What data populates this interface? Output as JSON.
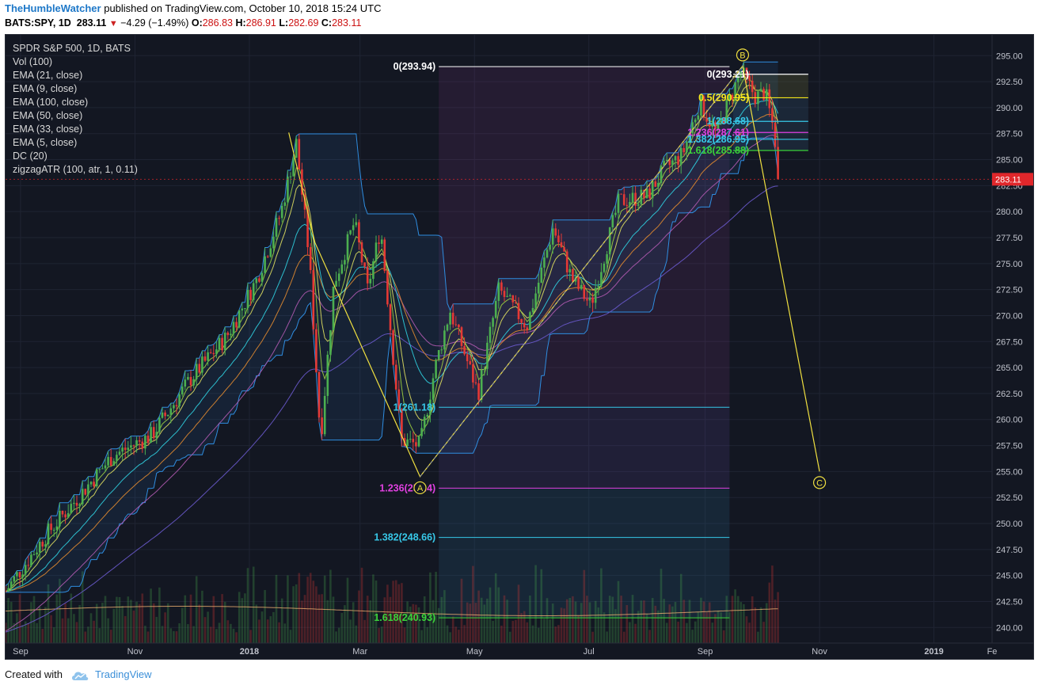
{
  "header": {
    "author": "TheHumbleWatcher",
    "published": "published on TradingView.com, October 10, 2018 15:24 UTC",
    "symbol": "BATS:SPY, 1D",
    "last": "283.11",
    "change": "−4.29 (−1.49%)",
    "open_label": "O:",
    "open": "286.83",
    "high_label": "H:",
    "high": "286.91",
    "low_label": "L:",
    "low": "282.69",
    "close_label": "C:",
    "close": "283.11"
  },
  "legend": [
    "SPDR S&P 500, 1D, BATS",
    "Vol (100)",
    "EMA (21, close)",
    "EMA (9, close)",
    "EMA (100, close)",
    "EMA (50, close)",
    "EMA (33, close)",
    "EMA (5, close)",
    "DC (20)",
    "zigzagATR (100, atr, 1, 0.11)"
  ],
  "footer": {
    "created_with": "Created with",
    "brand": "TradingView"
  },
  "colors": {
    "background": "#131722",
    "up": "#4caf50",
    "down": "#e53935",
    "price_label": "#e0272b",
    "fib_white": "#ffffff",
    "fib_yellow": "#f5e71a",
    "fib_cyan": "#37c8e8",
    "fib_magenta": "#e040e0",
    "fib_green": "#3ad23a",
    "zigzag": "#f0e040",
    "donchian": "#2f8de0"
  },
  "chart_data": {
    "type": "candlestick",
    "title": "SPDR S&P 500, 1D, BATS",
    "x_ticks": [
      "Sep",
      "Nov",
      "2018",
      "Mar",
      "May",
      "Jul",
      "Sep",
      "Nov",
      "2019",
      "Fe"
    ],
    "y_ticks": [
      "295.00",
      "292.50",
      "290.00",
      "287.50",
      "285.00",
      "282.50",
      "280.00",
      "277.50",
      "275.00",
      "272.50",
      "270.00",
      "267.50",
      "265.00",
      "262.50",
      "260.00",
      "257.50",
      "255.00",
      "252.50",
      "250.00",
      "247.50",
      "245.00",
      "242.50",
      "240.00"
    ],
    "ylim": [
      238.5,
      297.0
    ],
    "last_price": 283.11,
    "price_path": [
      {
        "date": "2017-08-24",
        "close": 243.5
      },
      {
        "date": "2017-09-15",
        "close": 249.0
      },
      {
        "date": "2017-10-02",
        "close": 252.6
      },
      {
        "date": "2017-10-20",
        "close": 256.5
      },
      {
        "date": "2017-11-10",
        "close": 258.5
      },
      {
        "date": "2017-12-01",
        "close": 264.0
      },
      {
        "date": "2017-12-20",
        "close": 268.0
      },
      {
        "date": "2018-01-05",
        "close": 273.5
      },
      {
        "date": "2018-01-18",
        "close": 280.0
      },
      {
        "date": "2018-01-26",
        "close": 286.6
      },
      {
        "date": "2018-02-02",
        "close": 275.5
      },
      {
        "date": "2018-02-08",
        "close": 258.0
      },
      {
        "date": "2018-02-15",
        "close": 273.0
      },
      {
        "date": "2018-02-26",
        "close": 279.0
      },
      {
        "date": "2018-03-05",
        "close": 272.5
      },
      {
        "date": "2018-03-12",
        "close": 278.5
      },
      {
        "date": "2018-03-23",
        "close": 258.0
      },
      {
        "date": "2018-04-02",
        "close": 257.5
      },
      {
        "date": "2018-04-10",
        "close": 265.0
      },
      {
        "date": "2018-04-18",
        "close": 270.5
      },
      {
        "date": "2018-05-03",
        "close": 262.5
      },
      {
        "date": "2018-05-14",
        "close": 272.5
      },
      {
        "date": "2018-05-29",
        "close": 269.0
      },
      {
        "date": "2018-06-12",
        "close": 278.5
      },
      {
        "date": "2018-06-22",
        "close": 273.5
      },
      {
        "date": "2018-07-02",
        "close": 271.0
      },
      {
        "date": "2018-07-17",
        "close": 281.0
      },
      {
        "date": "2018-08-01",
        "close": 281.5
      },
      {
        "date": "2018-08-10",
        "close": 284.0
      },
      {
        "date": "2018-08-20",
        "close": 285.5
      },
      {
        "date": "2018-08-29",
        "close": 290.5
      },
      {
        "date": "2018-09-07",
        "close": 287.5
      },
      {
        "date": "2018-09-20",
        "close": 293.5
      },
      {
        "date": "2018-09-28",
        "close": 291.0
      },
      {
        "date": "2018-10-03",
        "close": 291.5
      },
      {
        "date": "2018-10-08",
        "close": 287.5
      },
      {
        "date": "2018-10-10",
        "close": 283.11
      }
    ],
    "zigzag": [
      {
        "date": "2018-01-22",
        "value": 287.6,
        "label": ""
      },
      {
        "date": "2018-02-05",
        "value": 277.0,
        "label": ""
      },
      {
        "date": "2018-04-02",
        "value": 254.5,
        "label": "A"
      },
      {
        "date": "2018-09-21",
        "value": 294.0,
        "label": "B"
      },
      {
        "date": "2018-11-01",
        "value": 255.0,
        "label": "C"
      }
    ],
    "fib_left": [
      {
        "label": "0(293.94)",
        "value": 293.94,
        "color": "#ffffff"
      },
      {
        "label": "1(261.18)",
        "value": 261.18,
        "color": "#37c8e8"
      },
      {
        "label": "1.236(253.4)",
        "value": 253.4,
        "color": "#e040e0"
      },
      {
        "label": "1.382(248.66)",
        "value": 248.66,
        "color": "#37c8e8"
      },
      {
        "label": "1.618(240.93)",
        "value": 240.93,
        "color": "#3ad23a"
      }
    ],
    "fib_right": [
      {
        "label": "0(293.21)",
        "value": 293.21,
        "color": "#ffffff"
      },
      {
        "label": "0.5(290.95)",
        "value": 290.95,
        "color": "#f5e71a"
      },
      {
        "label": "1(288.68)",
        "value": 288.68,
        "color": "#37c8e8"
      },
      {
        "label": "1.236(287.61)",
        "value": 287.61,
        "color": "#e040e0"
      },
      {
        "label": "1.382(286.95)",
        "value": 286.95,
        "color": "#37c8e8"
      },
      {
        "label": "1.618(285.88)",
        "value": 285.88,
        "color": "#3ad23a"
      }
    ]
  }
}
